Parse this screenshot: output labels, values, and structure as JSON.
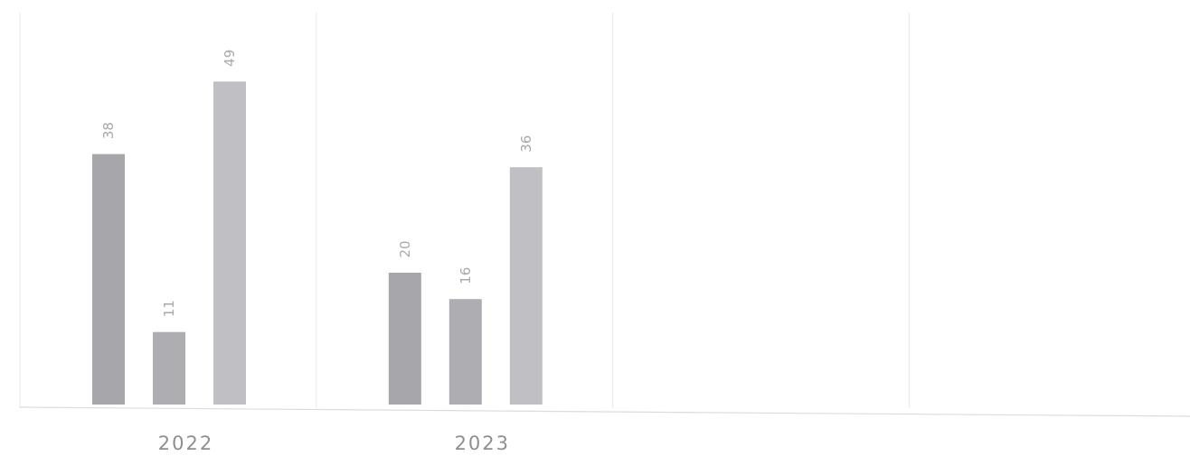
{
  "chart_data": {
    "type": "bar",
    "categories": [
      "2022",
      "2023",
      "",
      ""
    ],
    "series": [
      {
        "values": [
          38,
          20,
          null,
          null
        ],
        "color": "#a7a7ab"
      },
      {
        "values": [
          11,
          16,
          null,
          null
        ],
        "color": "#aeaeb2"
      },
      {
        "values": [
          49,
          36,
          null,
          null
        ],
        "color": "#c0c0c4"
      }
    ],
    "ylim": [
      0,
      60
    ],
    "grid": "vertical category separators"
  }
}
